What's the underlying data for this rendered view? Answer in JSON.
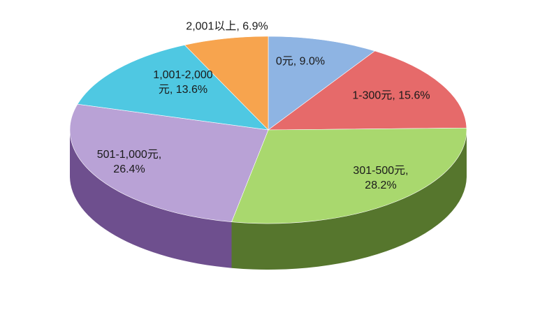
{
  "chart_data": {
    "type": "pie3d",
    "values": [
      9.0,
      15.6,
      28.2,
      26.4,
      13.6,
      6.9
    ],
    "value_labels": [
      "0元, 9.0%",
      "1-300元, 15.6%",
      "301-500元,\n28.2%",
      "501-1,000元,\n26.4%",
      "1,001-2,000\n元, 13.6%",
      "2,001以上, 6.9%"
    ],
    "colors": [
      "#8eb4e3",
      "#e66a6a",
      "#a9d86e",
      "#b9a2d6",
      "#4fc8e2",
      "#f7a44e"
    ],
    "side_colors": [
      "#5a7aa6",
      "#9e3434",
      "#56762d",
      "#6e4f8e",
      "#2a8aa0",
      "#b86a20"
    ]
  }
}
